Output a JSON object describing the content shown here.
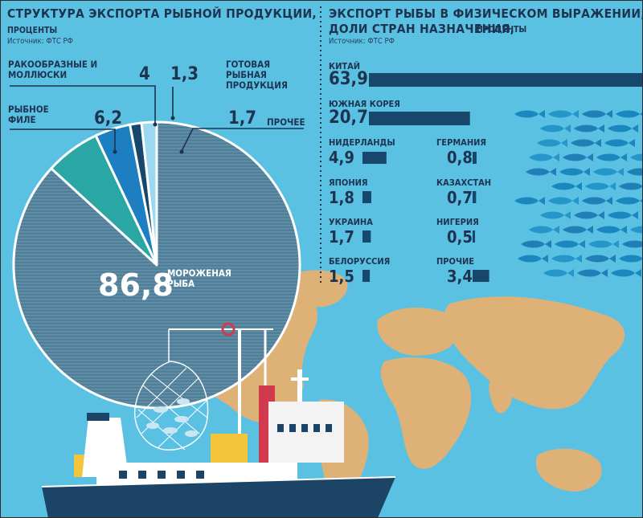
{
  "left": {
    "title": "СТРУКТУРА ЭКСПОРТА РЫБНОЙ ПРОДУКЦИИ,",
    "subtitle": "ПРОЦЕНТЫ",
    "source": "Источник: ФТС РФ"
  },
  "right": {
    "title_line1": "ЭКСПОРТ РЫБЫ В ФИЗИЧЕСКОМ ВЫРАЖЕНИИ,",
    "title_line2": "ДОЛИ СТРАН НАЗНАЧЕНИЯ,",
    "subtitle": "ПРОЦЕНТЫ",
    "source": "Источник: ФТС РФ"
  },
  "colors": {
    "background": "#5bc1e3",
    "navy": "#17476a",
    "teal": "#2aa7a5",
    "blue": "#1d7fc2",
    "light_blue": "#9ad9f0",
    "land": "#deb177",
    "hatch": "#4f7f99"
  },
  "chart_data": [
    {
      "type": "pie",
      "title": "СТРУКТУРА ЭКСПОРТА РЫБНОЙ ПРОДУКЦИИ, ПРОЦЕНТЫ",
      "slices": [
        {
          "label": "МОРОЖЕНАЯ РЫБА",
          "value": 86.8,
          "display": "86,8",
          "color": "#4f7f99"
        },
        {
          "label": "РЫБНОЕ ФИЛЕ",
          "value": 6.2,
          "display": "6,2",
          "color": "#2aa7a5"
        },
        {
          "label": "РАКООБРАЗНЫЕ И МОЛЛЮСКИ",
          "value": 4,
          "display": "4",
          "color": "#1d7fc2"
        },
        {
          "label": "ГОТОВАЯ РЫБНАЯ ПРОДУКЦИЯ",
          "value": 1.3,
          "display": "1,3",
          "color": "#17476a"
        },
        {
          "label": "ПРОЧЕЕ",
          "value": 1.7,
          "display": "1,7",
          "color": "#9ad9f0"
        }
      ]
    },
    {
      "type": "bar",
      "orientation": "horizontal",
      "title": "ЭКСПОРТ РЫБЫ В ФИЗИЧЕСКОМ ВЫРАЖЕНИИ, ДОЛИ СТРАН НАЗНАЧЕНИЯ, ПРОЦЕНТЫ",
      "categories": [
        "КИТАЙ",
        "ЮЖНАЯ КОРЕЯ",
        "НИДЕРЛАНДЫ",
        "ЯПОНИЯ",
        "УКРАИНА",
        "БЕЛОРУССИЯ",
        "ГЕРМАНИЯ",
        "КАЗАХСТАН",
        "НИГЕРИЯ",
        "ПРОЧИЕ"
      ],
      "values": [
        63.9,
        20.7,
        4.9,
        1.8,
        1.7,
        1.5,
        0.8,
        0.7,
        0.5,
        3.4
      ],
      "display": [
        "63,9",
        "20,7",
        "4,9",
        "1,8",
        "1,7",
        "1,5",
        "0,8",
        "0,7",
        "0,5",
        "3,4"
      ]
    }
  ]
}
